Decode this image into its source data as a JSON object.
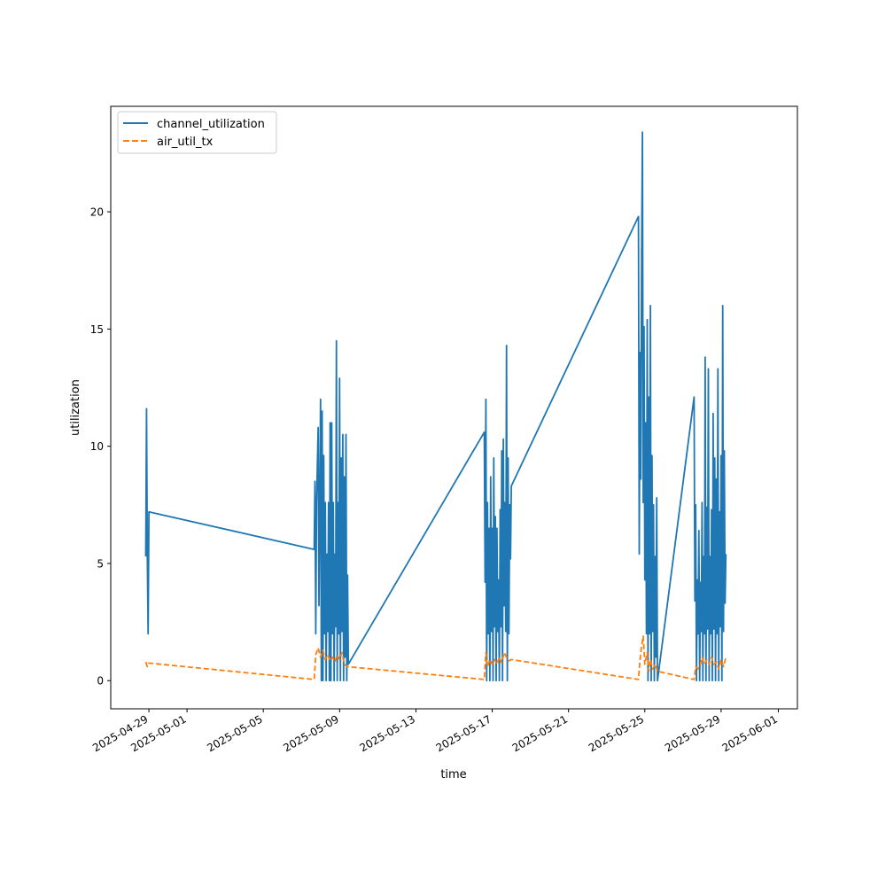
{
  "chart_data": {
    "type": "line",
    "title": "",
    "xlabel": "time",
    "ylabel": "utilization",
    "xaxis": {
      "kind": "date",
      "range": [
        "2025-04-27",
        "2025-06-02"
      ],
      "ticks": [
        "2025-04-29",
        "2025-05-01",
        "2025-05-05",
        "2025-05-09",
        "2025-05-13",
        "2025-05-17",
        "2025-05-21",
        "2025-05-25",
        "2025-05-29",
        "2025-06-01"
      ]
    },
    "yaxis": {
      "range": [
        -1.2,
        24.5
      ],
      "ticks": [
        0,
        5,
        10,
        15,
        20
      ]
    },
    "grid": false,
    "legend": {
      "position": "upper-left"
    },
    "series": [
      {
        "name": "channel_utilization",
        "color": "#1f77b4",
        "style": "solid",
        "points": [
          [
            "2025-04-28T20:00",
            5.3
          ],
          [
            "2025-04-28T21:00",
            11.6
          ],
          [
            "2025-04-28T22:00",
            5.2
          ],
          [
            "2025-04-28T23:00",
            2.0
          ],
          [
            "2025-04-29T00:00",
            7.2
          ],
          [
            "2025-05-07T16:00",
            5.6
          ],
          [
            "2025-05-07T17:00",
            8.5
          ],
          [
            "2025-05-07T18:00",
            2.0
          ],
          [
            "2025-05-07T19:00",
            7.6
          ],
          [
            "2025-05-07T21:00",
            10.8
          ],
          [
            "2025-05-07T22:00",
            3.2
          ],
          [
            "2025-05-08T00:00",
            12.0
          ],
          [
            "2025-05-08T01:00",
            0.0
          ],
          [
            "2025-05-08T02:00",
            11.5
          ],
          [
            "2025-05-08T03:00",
            0.0
          ],
          [
            "2025-05-08T04:00",
            9.6
          ],
          [
            "2025-05-08T05:00",
            2.0
          ],
          [
            "2025-05-08T06:00",
            7.6
          ],
          [
            "2025-05-08T07:00",
            0.0
          ],
          [
            "2025-05-08T08:00",
            5.4
          ],
          [
            "2025-05-08T09:00",
            2.1
          ],
          [
            "2025-05-08T10:00",
            7.6
          ],
          [
            "2025-05-08T11:00",
            0.0
          ],
          [
            "2025-05-08T12:00",
            11.0
          ],
          [
            "2025-05-08T13:00",
            0.0
          ],
          [
            "2025-05-08T14:00",
            11.0
          ],
          [
            "2025-05-08T15:00",
            2.0
          ],
          [
            "2025-05-08T16:00",
            7.6
          ],
          [
            "2025-05-08T17:00",
            0.0
          ],
          [
            "2025-05-08T18:00",
            5.4
          ],
          [
            "2025-05-08T19:00",
            2.3
          ],
          [
            "2025-05-08T20:00",
            14.5
          ],
          [
            "2025-05-08T21:00",
            0.0
          ],
          [
            "2025-05-08T22:00",
            7.6
          ],
          [
            "2025-05-08T23:00",
            2.0
          ],
          [
            "2025-05-09T00:00",
            12.9
          ],
          [
            "2025-05-09T01:00",
            0.0
          ],
          [
            "2025-05-09T02:00",
            9.5
          ],
          [
            "2025-05-09T03:00",
            2.1
          ],
          [
            "2025-05-09T04:00",
            10.5
          ],
          [
            "2025-05-09T05:00",
            0.0
          ],
          [
            "2025-05-09T06:00",
            8.7
          ],
          [
            "2025-05-09T07:00",
            1.0
          ],
          [
            "2025-05-09T08:00",
            10.5
          ],
          [
            "2025-05-09T09:00",
            0.0
          ],
          [
            "2025-05-09T10:00",
            4.5
          ],
          [
            "2025-05-09T11:00",
            0.7
          ],
          [
            "2025-05-16T14:00",
            10.6
          ],
          [
            "2025-05-16T15:00",
            4.2
          ],
          [
            "2025-05-16T16:00",
            12.0
          ],
          [
            "2025-05-16T17:00",
            0.0
          ],
          [
            "2025-05-16T18:00",
            7.6
          ],
          [
            "2025-05-16T19:00",
            2.0
          ],
          [
            "2025-05-16T20:00",
            6.5
          ],
          [
            "2025-05-16T21:00",
            0.0
          ],
          [
            "2025-05-16T22:00",
            8.7
          ],
          [
            "2025-05-16T23:00",
            2.1
          ],
          [
            "2025-05-17T00:00",
            6.5
          ],
          [
            "2025-05-17T01:00",
            0.0
          ],
          [
            "2025-05-17T02:00",
            9.5
          ],
          [
            "2025-05-17T03:00",
            2.3
          ],
          [
            "2025-05-17T04:00",
            7.0
          ],
          [
            "2025-05-17T05:00",
            0.0
          ],
          [
            "2025-05-17T06:00",
            6.5
          ],
          [
            "2025-05-17T07:00",
            2.1
          ],
          [
            "2025-05-17T08:00",
            4.3
          ],
          [
            "2025-05-17T09:00",
            0.0
          ],
          [
            "2025-05-17T10:00",
            7.3
          ],
          [
            "2025-05-17T11:00",
            2.3
          ],
          [
            "2025-05-17T12:00",
            9.8
          ],
          [
            "2025-05-17T13:00",
            0.0
          ],
          [
            "2025-05-17T14:00",
            10.3
          ],
          [
            "2025-05-17T15:00",
            3.2
          ],
          [
            "2025-05-17T16:00",
            7.6
          ],
          [
            "2025-05-17T17:00",
            2.1
          ],
          [
            "2025-05-17T18:00",
            14.3
          ],
          [
            "2025-05-17T19:00",
            0.0
          ],
          [
            "2025-05-17T20:00",
            9.5
          ],
          [
            "2025-05-17T21:00",
            2.0
          ],
          [
            "2025-05-17T22:00",
            7.5
          ],
          [
            "2025-05-17T23:00",
            5.2
          ],
          [
            "2025-05-18T00:00",
            8.3
          ],
          [
            "2025-05-24T16:00",
            19.8
          ],
          [
            "2025-05-24T17:00",
            5.4
          ],
          [
            "2025-05-24T18:00",
            14.0
          ],
          [
            "2025-05-24T19:00",
            8.6
          ],
          [
            "2025-05-24T20:00",
            18.2
          ],
          [
            "2025-05-24T21:00",
            23.4
          ],
          [
            "2025-05-24T22:00",
            7.6
          ],
          [
            "2025-05-24T23:00",
            15.1
          ],
          [
            "2025-05-25T00:00",
            4.3
          ],
          [
            "2025-05-25T01:00",
            11.0
          ],
          [
            "2025-05-25T02:00",
            2.0
          ],
          [
            "2025-05-25T03:00",
            15.4
          ],
          [
            "2025-05-25T04:00",
            0.0
          ],
          [
            "2025-05-25T05:00",
            12.1
          ],
          [
            "2025-05-25T06:00",
            2.0
          ],
          [
            "2025-05-25T07:00",
            16.0
          ],
          [
            "2025-05-25T08:00",
            0.0
          ],
          [
            "2025-05-25T09:00",
            9.6
          ],
          [
            "2025-05-25T10:00",
            2.1
          ],
          [
            "2025-05-25T11:00",
            7.5
          ],
          [
            "2025-05-25T12:00",
            0.0
          ],
          [
            "2025-05-25T13:00",
            5.3
          ],
          [
            "2025-05-25T14:00",
            1.0
          ],
          [
            "2025-05-25T15:00",
            7.8
          ],
          [
            "2025-05-25T16:00",
            0.0
          ],
          [
            "2025-05-27T14:00",
            12.1
          ],
          [
            "2025-05-27T15:00",
            3.4
          ],
          [
            "2025-05-27T16:00",
            7.5
          ],
          [
            "2025-05-27T17:00",
            0.0
          ],
          [
            "2025-05-27T18:00",
            4.3
          ],
          [
            "2025-05-27T19:00",
            2.0
          ],
          [
            "2025-05-27T20:00",
            6.4
          ],
          [
            "2025-05-27T21:00",
            0.0
          ],
          [
            "2025-05-27T22:00",
            4.2
          ],
          [
            "2025-05-27T23:00",
            2.1
          ],
          [
            "2025-05-28T00:00",
            7.6
          ],
          [
            "2025-05-28T01:00",
            0.0
          ],
          [
            "2025-05-28T02:00",
            5.3
          ],
          [
            "2025-05-28T03:00",
            2.0
          ],
          [
            "2025-05-28T04:00",
            13.8
          ],
          [
            "2025-05-28T05:00",
            0.0
          ],
          [
            "2025-05-28T06:00",
            7.4
          ],
          [
            "2025-05-28T07:00",
            2.2
          ],
          [
            "2025-05-28T08:00",
            13.3
          ],
          [
            "2025-05-28T09:00",
            0.0
          ],
          [
            "2025-05-28T10:00",
            5.3
          ],
          [
            "2025-05-28T11:00",
            2.0
          ],
          [
            "2025-05-28T12:00",
            7.3
          ],
          [
            "2025-05-28T13:00",
            0.0
          ],
          [
            "2025-05-28T14:00",
            11.4
          ],
          [
            "2025-05-28T15:00",
            2.2
          ],
          [
            "2025-05-28T16:00",
            9.5
          ],
          [
            "2025-05-28T17:00",
            0.0
          ],
          [
            "2025-05-28T18:00",
            8.6
          ],
          [
            "2025-05-28T19:00",
            2.0
          ],
          [
            "2025-05-28T20:00",
            13.3
          ],
          [
            "2025-05-28T21:00",
            0.0
          ],
          [
            "2025-05-28T22:00",
            7.2
          ],
          [
            "2025-05-28T23:00",
            2.3
          ],
          [
            "2025-05-29T00:00",
            9.6
          ],
          [
            "2025-05-29T01:00",
            0.0
          ],
          [
            "2025-05-29T02:00",
            16.0
          ],
          [
            "2025-05-29T03:00",
            2.1
          ],
          [
            "2025-05-29T04:00",
            9.8
          ],
          [
            "2025-05-29T05:00",
            3.3
          ],
          [
            "2025-05-29T06:00",
            5.4
          ]
        ]
      },
      {
        "name": "air_util_tx",
        "color": "#ff7f0e",
        "style": "dashed",
        "points": [
          [
            "2025-04-28T20:00",
            0.8
          ],
          [
            "2025-04-28T22:00",
            0.6
          ],
          [
            "2025-04-29T00:00",
            0.75
          ],
          [
            "2025-05-07T16:00",
            0.05
          ],
          [
            "2025-05-07T18:00",
            1.1
          ],
          [
            "2025-05-07T21:00",
            1.4
          ],
          [
            "2025-05-08T00:00",
            1.0
          ],
          [
            "2025-05-08T03:00",
            1.3
          ],
          [
            "2025-05-08T06:00",
            0.9
          ],
          [
            "2025-05-08T09:00",
            1.1
          ],
          [
            "2025-05-08T12:00",
            0.85
          ],
          [
            "2025-05-08T15:00",
            1.0
          ],
          [
            "2025-05-08T18:00",
            0.8
          ],
          [
            "2025-05-08T21:00",
            1.1
          ],
          [
            "2025-05-09T00:00",
            0.9
          ],
          [
            "2025-05-09T03:00",
            1.2
          ],
          [
            "2025-05-09T06:00",
            0.7
          ],
          [
            "2025-05-09T09:00",
            0.6
          ],
          [
            "2025-05-16T14:00",
            0.05
          ],
          [
            "2025-05-16T16:00",
            1.2
          ],
          [
            "2025-05-16T18:00",
            0.6
          ],
          [
            "2025-05-16T21:00",
            0.9
          ],
          [
            "2025-05-17T00:00",
            0.7
          ],
          [
            "2025-05-17T03:00",
            0.9
          ],
          [
            "2025-05-17T06:00",
            0.7
          ],
          [
            "2025-05-17T09:00",
            1.0
          ],
          [
            "2025-05-17T12:00",
            0.75
          ],
          [
            "2025-05-17T15:00",
            1.2
          ],
          [
            "2025-05-17T18:00",
            1.0
          ],
          [
            "2025-05-17T21:00",
            0.85
          ],
          [
            "2025-05-18T00:00",
            0.9
          ],
          [
            "2025-05-24T16:00",
            0.05
          ],
          [
            "2025-05-24T18:00",
            0.9
          ],
          [
            "2025-05-24T20:00",
            1.5
          ],
          [
            "2025-05-24T22:00",
            1.9
          ],
          [
            "2025-05-25T00:00",
            0.7
          ],
          [
            "2025-05-25T03:00",
            1.2
          ],
          [
            "2025-05-25T05:00",
            0.4
          ],
          [
            "2025-05-25T07:00",
            0.9
          ],
          [
            "2025-05-25T10:00",
            0.5
          ],
          [
            "2025-05-25T13:00",
            0.7
          ],
          [
            "2025-05-25T16:00",
            0.4
          ],
          [
            "2025-05-27T14:00",
            0.05
          ],
          [
            "2025-05-27T16:00",
            0.6
          ],
          [
            "2025-05-27T19:00",
            0.5
          ],
          [
            "2025-05-27T22:00",
            0.7
          ],
          [
            "2025-05-28T00:00",
            1.0
          ],
          [
            "2025-05-28T03:00",
            0.7
          ],
          [
            "2025-05-28T06:00",
            0.9
          ],
          [
            "2025-05-28T09:00",
            0.7
          ],
          [
            "2025-05-28T12:00",
            1.0
          ],
          [
            "2025-05-28T15:00",
            0.7
          ],
          [
            "2025-05-28T18:00",
            0.8
          ],
          [
            "2025-05-28T21:00",
            0.5
          ],
          [
            "2025-05-29T00:00",
            0.9
          ],
          [
            "2025-05-29T03:00",
            0.6
          ],
          [
            "2025-05-29T06:00",
            1.0
          ]
        ]
      }
    ]
  }
}
